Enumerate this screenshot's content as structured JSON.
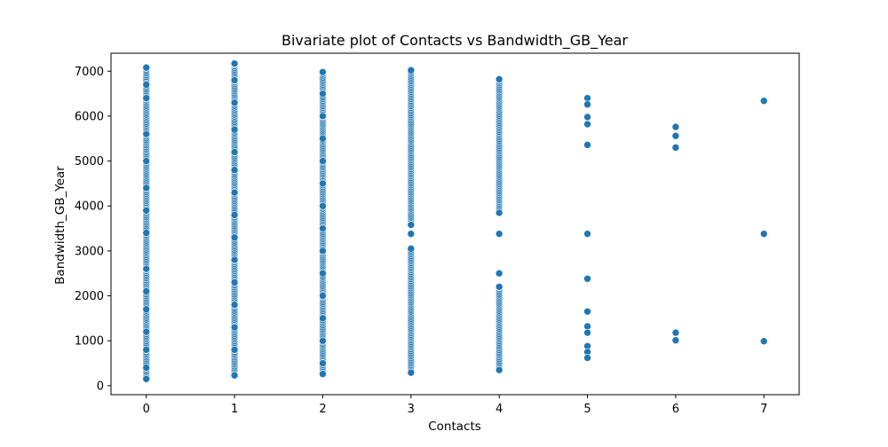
{
  "chart_data": {
    "type": "scatter",
    "title": "Bivariate plot of Contacts vs Bandwidth_GB_Year",
    "xlabel": "Contacts",
    "ylabel": "Bandwidth_GB_Year",
    "xlim": [
      -0.4,
      7.4
    ],
    "ylim": [
      -200,
      7400
    ],
    "xticks": [
      0,
      1,
      2,
      3,
      4,
      5,
      6,
      7
    ],
    "yticks": [
      0,
      1000,
      2000,
      3000,
      4000,
      5000,
      6000,
      7000
    ],
    "marker_color": "#1f77b4",
    "grid": false,
    "legend": "none",
    "columns": [
      {
        "x": 0,
        "ranges": [
          [
            150,
            7080
          ]
        ],
        "y": [
          150,
          7080,
          6700,
          6400,
          5600,
          5000,
          4400,
          3900,
          3400,
          2600,
          2100,
          1700,
          1200,
          800,
          400
        ]
      },
      {
        "x": 1,
        "ranges": [
          [
            230,
            7170
          ]
        ],
        "y": [
          230,
          7170,
          6800,
          6300,
          5700,
          5200,
          4800,
          4300,
          3800,
          3300,
          2800,
          2300,
          1800,
          1300,
          800
        ]
      },
      {
        "x": 2,
        "ranges": [
          [
            260,
            6980
          ]
        ],
        "y": [
          260,
          6980,
          6500,
          6000,
          5500,
          5000,
          4500,
          4000,
          3500,
          3000,
          2500,
          2000,
          1500,
          1000,
          500
        ]
      },
      {
        "x": 3,
        "ranges": [
          [
            290,
            3050
          ],
          [
            3580,
            7020
          ]
        ],
        "y": [
          3380,
          290,
          7020,
          3050,
          3580
        ]
      },
      {
        "x": 4,
        "ranges": [
          [
            350,
            2200
          ],
          [
            3850,
            6820
          ]
        ],
        "y": [
          3380,
          2500,
          350,
          6820,
          2200,
          3850
        ]
      },
      {
        "x": 5,
        "y": [
          6400,
          6260,
          5980,
          5820,
          5360,
          3380,
          2380,
          1650,
          1320,
          1180,
          880,
          750,
          620
        ]
      },
      {
        "x": 6,
        "y": [
          5760,
          5560,
          5300,
          1180,
          1010
        ]
      },
      {
        "x": 7,
        "y": [
          6340,
          3380,
          990
        ]
      }
    ]
  }
}
